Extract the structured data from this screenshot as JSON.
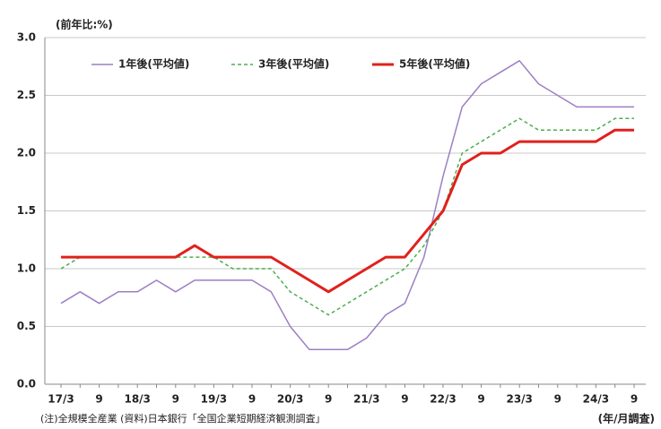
{
  "chart_data": {
    "type": "line",
    "y_label": "(前年比:%)",
    "x_unit_label": "(年/月調査)",
    "note": "(注)全規模全産業 (資料)日本銀行「全国企業短期経済観測調査」",
    "categories": [
      "17/3",
      null,
      "9",
      null,
      "18/3",
      null,
      "9",
      null,
      "19/3",
      null,
      "9",
      null,
      "20/3",
      null,
      "9",
      null,
      "21/3",
      null,
      "9",
      null,
      "22/3",
      null,
      "9",
      null,
      "23/3",
      null,
      "9",
      null,
      "24/3",
      null,
      "9"
    ],
    "series": [
      {
        "name": "1年後(平均値)",
        "color": "#9c7fc4",
        "style": "solid",
        "values": [
          0.7,
          0.8,
          0.7,
          0.8,
          0.8,
          0.9,
          0.8,
          0.9,
          0.9,
          0.9,
          0.9,
          0.8,
          0.5,
          0.3,
          0.3,
          0.3,
          0.4,
          0.6,
          0.7,
          1.1,
          1.8,
          2.4,
          2.6,
          2.7,
          2.8,
          2.6,
          2.5,
          2.4,
          2.4,
          2.4,
          2.4
        ]
      },
      {
        "name": "3年後(平均値)",
        "color": "#4caf50",
        "style": "dashed",
        "values": [
          1.0,
          1.1,
          1.1,
          1.1,
          1.1,
          1.1,
          1.1,
          1.1,
          1.1,
          1.0,
          1.0,
          1.0,
          0.8,
          0.7,
          0.6,
          0.7,
          0.8,
          0.9,
          1.0,
          1.2,
          1.5,
          2.0,
          2.1,
          2.2,
          2.3,
          2.2,
          2.2,
          2.2,
          2.2,
          2.3,
          2.3
        ]
      },
      {
        "name": "5年後(平均値)",
        "color": "#e0201b",
        "style": "bold",
        "values": [
          1.1,
          1.1,
          1.1,
          1.1,
          1.1,
          1.1,
          1.1,
          1.2,
          1.1,
          1.1,
          1.1,
          1.1,
          1.0,
          0.9,
          0.8,
          0.9,
          1.0,
          1.1,
          1.1,
          1.3,
          1.5,
          1.9,
          2.0,
          2.0,
          2.1,
          2.1,
          2.1,
          2.1,
          2.1,
          2.2,
          2.2
        ]
      }
    ],
    "ylim": [
      0,
      3
    ],
    "yticks": [
      {
        "value": 0,
        "label": "0.0"
      },
      0.5,
      {
        "value": 1,
        "label": "1.0"
      },
      1.5,
      {
        "value": 2,
        "label": "2.0"
      },
      2.5,
      {
        "value": 3,
        "label": "3.0"
      }
    ],
    "grid": true
  }
}
